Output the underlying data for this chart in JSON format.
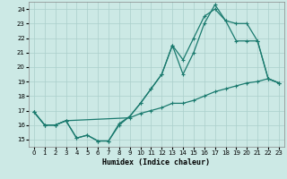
{
  "xlabel": "Humidex (Indice chaleur)",
  "background_color": "#cce9e5",
  "grid_color": "#aacfcb",
  "line_color": "#1a7a6e",
  "xlim": [
    -0.5,
    23.5
  ],
  "ylim": [
    14.5,
    24.5
  ],
  "xticks": [
    0,
    1,
    2,
    3,
    4,
    5,
    6,
    7,
    8,
    9,
    10,
    11,
    12,
    13,
    14,
    15,
    16,
    17,
    18,
    19,
    20,
    21,
    22,
    23
  ],
  "yticks": [
    15,
    16,
    17,
    18,
    19,
    20,
    21,
    22,
    23,
    24
  ],
  "series1_x": [
    0,
    1,
    2,
    3,
    4,
    5,
    6,
    7,
    8,
    9,
    10,
    11,
    12,
    13,
    14,
    15,
    16,
    17,
    18,
    19,
    20,
    21,
    22,
    23
  ],
  "series1_y": [
    16.9,
    16.0,
    16.0,
    16.3,
    15.1,
    15.3,
    14.9,
    14.9,
    16.0,
    16.6,
    17.5,
    18.5,
    19.5,
    21.5,
    19.5,
    21.0,
    23.0,
    24.3,
    23.2,
    21.8,
    21.8,
    21.8,
    19.2,
    18.9
  ],
  "series2_x": [
    0,
    1,
    2,
    3,
    4,
    5,
    6,
    7,
    8,
    9,
    10,
    11,
    12,
    13,
    14,
    15,
    16,
    17,
    18,
    19,
    20,
    21,
    22,
    23
  ],
  "series2_y": [
    16.9,
    16.0,
    16.0,
    16.3,
    15.1,
    15.3,
    14.9,
    14.9,
    16.1,
    16.6,
    17.5,
    18.5,
    19.5,
    21.5,
    20.5,
    22.0,
    23.5,
    24.0,
    23.2,
    23.0,
    23.0,
    21.8,
    19.2,
    18.9
  ],
  "series3_x": [
    0,
    1,
    2,
    3,
    9,
    10,
    11,
    12,
    13,
    14,
    15,
    16,
    17,
    18,
    19,
    20,
    21,
    22,
    23
  ],
  "series3_y": [
    16.9,
    16.0,
    16.0,
    16.3,
    16.5,
    16.8,
    17.0,
    17.2,
    17.5,
    17.5,
    17.7,
    18.0,
    18.3,
    18.5,
    18.7,
    18.9,
    19.0,
    19.2,
    18.9
  ]
}
